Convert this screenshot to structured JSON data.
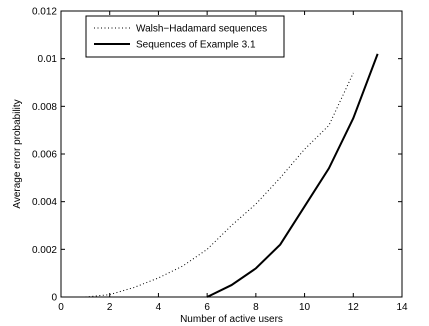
{
  "chart_data": {
    "type": "line",
    "title": "",
    "xlabel": "Number of active users",
    "ylabel": "Average error probability",
    "xlim": [
      0,
      14
    ],
    "ylim": [
      0,
      0.012
    ],
    "xticks": [
      "0",
      "2",
      "4",
      "6",
      "8",
      "10",
      "12",
      "14"
    ],
    "yticks": [
      "0",
      "0.002",
      "0.004",
      "0.006",
      "0.008",
      "0.01",
      "0.012"
    ],
    "grid": false,
    "legend_position": "top-left",
    "series": [
      {
        "name": "Walsh−Hadamard sequences",
        "style": "dotted",
        "color": "#000000",
        "x": [
          1,
          2,
          3,
          4,
          5,
          6,
          7,
          8,
          9,
          10,
          11,
          12
        ],
        "y": [
          0.0,
          0.0001,
          0.0004,
          0.0008,
          0.0013,
          0.002,
          0.003,
          0.0039,
          0.005,
          0.0062,
          0.0072,
          0.0094
        ]
      },
      {
        "name": "Sequences of Example 3.1",
        "style": "solid",
        "color": "#000000",
        "x": [
          6,
          7,
          8,
          9,
          10,
          11,
          12,
          13
        ],
        "y": [
          0.0,
          0.0005,
          0.0012,
          0.0022,
          0.0038,
          0.0054,
          0.0075,
          0.0102
        ]
      }
    ]
  }
}
